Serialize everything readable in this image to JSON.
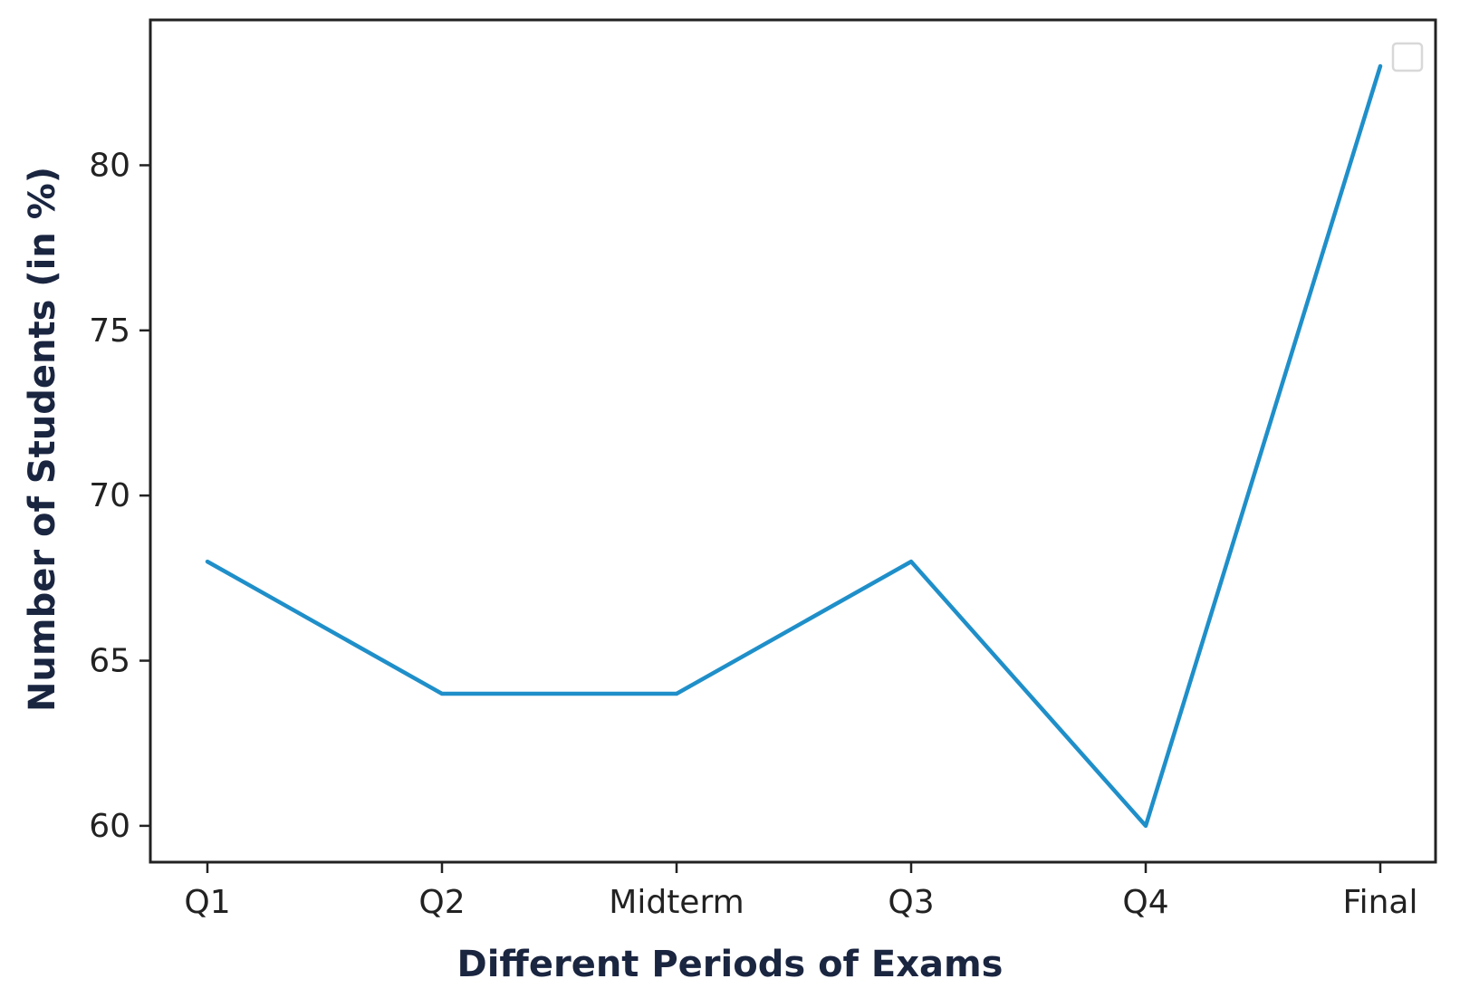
{
  "chart_data": {
    "type": "line",
    "categories": [
      "Q1",
      "Q2",
      "Midterm",
      "Q3",
      "Q4",
      "Final"
    ],
    "series": [
      {
        "values": [
          68,
          64,
          64,
          68,
          60,
          83
        ],
        "color": "#1f8fc9"
      }
    ],
    "xlabel": "Different Periods of Exams",
    "ylabel": "Number of Students (in %)",
    "yticks": [
      60,
      65,
      70,
      75,
      80
    ],
    "ylim": [
      58.9,
      84.4
    ],
    "grid": false,
    "legend": {
      "placement": "top-right",
      "entries": []
    }
  }
}
